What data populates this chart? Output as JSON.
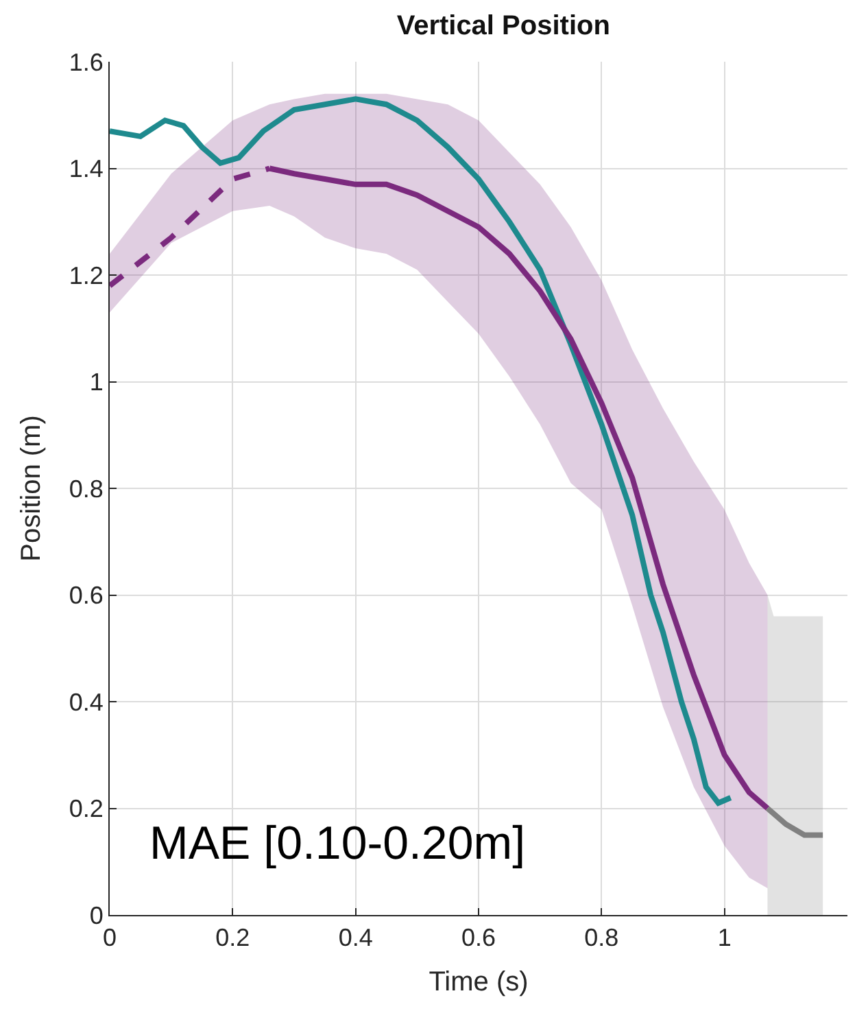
{
  "chart_data": {
    "type": "line",
    "title": "Vertical Position",
    "xlabel": "Time (s)",
    "ylabel": "Position (m)",
    "xlim": [
      0,
      1.2
    ],
    "ylim": [
      0,
      1.6
    ],
    "xticks": [
      0,
      0.2,
      0.4,
      0.6,
      0.8,
      1
    ],
    "yticks": [
      0,
      0.2,
      0.4,
      0.6,
      0.8,
      1,
      1.2,
      1.4,
      1.6
    ],
    "grid": true,
    "annotations": [
      "MAE [0.10-0.20m]"
    ],
    "series": [
      {
        "color": "#1e8a8e",
        "line_style": "solid",
        "x": [
          0,
          0.05,
          0.09,
          0.12,
          0.15,
          0.18,
          0.21,
          0.25,
          0.3,
          0.35,
          0.4,
          0.45,
          0.5,
          0.55,
          0.6,
          0.65,
          0.7,
          0.75,
          0.8,
          0.85,
          0.88,
          0.9,
          0.93,
          0.95,
          0.97,
          0.99,
          1.01
        ],
        "values": [
          1.47,
          1.46,
          1.49,
          1.48,
          1.44,
          1.41,
          1.42,
          1.47,
          1.51,
          1.52,
          1.53,
          1.52,
          1.49,
          1.44,
          1.38,
          1.3,
          1.21,
          1.07,
          0.92,
          0.75,
          0.6,
          0.53,
          0.4,
          0.33,
          0.24,
          0.21,
          0.22
        ]
      },
      {
        "color": "#7b2a7e",
        "line_style": "dashed",
        "x": [
          0,
          0.1,
          0.2,
          0.26
        ],
        "values": [
          1.18,
          1.27,
          1.38,
          1.4
        ],
        "lower": [
          1.13,
          1.26,
          1.32,
          1.33
        ],
        "upper": [
          1.24,
          1.39,
          1.49,
          1.52
        ]
      },
      {
        "color": "#7b2a7e",
        "line_style": "solid",
        "x": [
          0.26,
          0.3,
          0.35,
          0.4,
          0.45,
          0.5,
          0.55,
          0.6,
          0.65,
          0.7,
          0.75,
          0.8,
          0.85,
          0.9,
          0.95,
          1,
          1.04,
          1.07
        ],
        "values": [
          1.4,
          1.39,
          1.38,
          1.37,
          1.37,
          1.35,
          1.32,
          1.29,
          1.24,
          1.17,
          1.08,
          0.96,
          0.82,
          0.62,
          0.45,
          0.3,
          0.23,
          0.2
        ],
        "lower": [
          1.33,
          1.31,
          1.27,
          1.25,
          1.24,
          1.21,
          1.15,
          1.09,
          1.01,
          0.92,
          0.81,
          0.76,
          0.58,
          0.39,
          0.24,
          0.13,
          0.07,
          0.05
        ],
        "upper": [
          1.52,
          1.53,
          1.54,
          1.54,
          1.54,
          1.53,
          1.52,
          1.49,
          1.43,
          1.37,
          1.29,
          1.19,
          1.06,
          0.95,
          0.85,
          0.76,
          0.66,
          0.6
        ]
      },
      {
        "color": "#808080",
        "line_style": "solid",
        "x": [
          1.07,
          1.08,
          1.1,
          1.13,
          1.16
        ],
        "values": [
          0.2,
          0.19,
          0.17,
          0.15,
          0.15
        ],
        "lower": [
          0,
          0,
          0,
          0,
          0
        ],
        "upper": [
          0.6,
          0.56,
          0.56,
          0.56,
          0.56
        ]
      }
    ]
  }
}
